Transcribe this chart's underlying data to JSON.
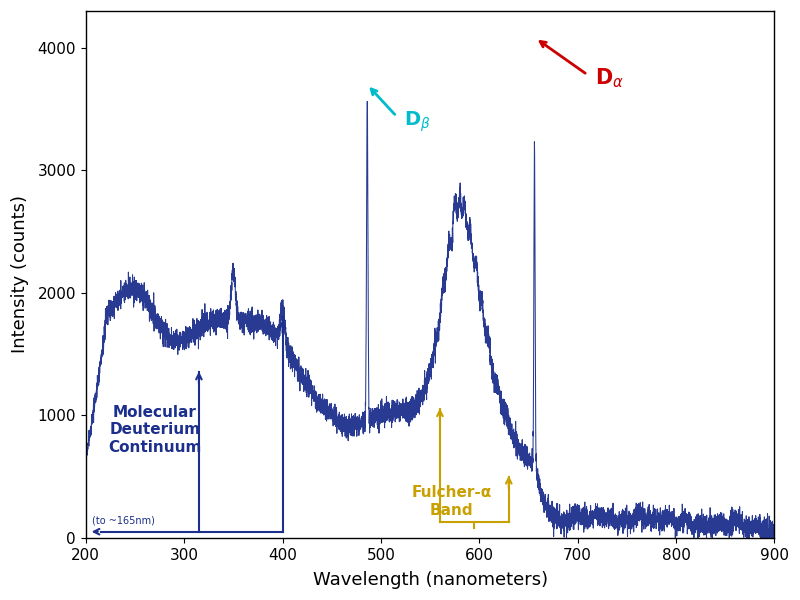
{
  "xlabel": "Wavelength (nanometers)",
  "ylabel": "Intensity (counts)",
  "xlim": [
    200,
    900
  ],
  "ylim": [
    0,
    4300
  ],
  "yticks": [
    0,
    1000,
    2000,
    3000,
    4000
  ],
  "xticks": [
    200,
    300,
    400,
    500,
    600,
    700,
    800,
    900
  ],
  "spectrum_color": "#1c2f8c",
  "background_color": "#ffffff",
  "ann_mol_color": "#1c2f8c",
  "ann_fulcher_color": "#c8a000",
  "ann_dbeta_color": "#00bbcc",
  "ann_dalpha_color": "#cc0000",
  "figsize": [
    8.0,
    6.0
  ],
  "dpi": 100
}
